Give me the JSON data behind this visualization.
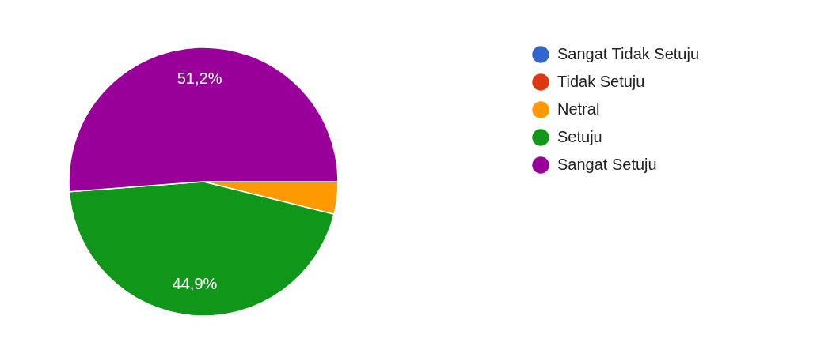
{
  "chart_data": {
    "type": "pie",
    "categories": [
      "Sangat Tidak Setuju",
      "Tidak Setuju",
      "Netral",
      "Setuju",
      "Sangat Setuju"
    ],
    "values": [
      0,
      0,
      3.9,
      44.9,
      51.2
    ],
    "colors": [
      "#3366cc",
      "#dc3912",
      "#ff9900",
      "#109618",
      "#990099"
    ],
    "value_labels": [
      null,
      null,
      null,
      "44,9%",
      "51,2%"
    ],
    "legend": "right"
  }
}
